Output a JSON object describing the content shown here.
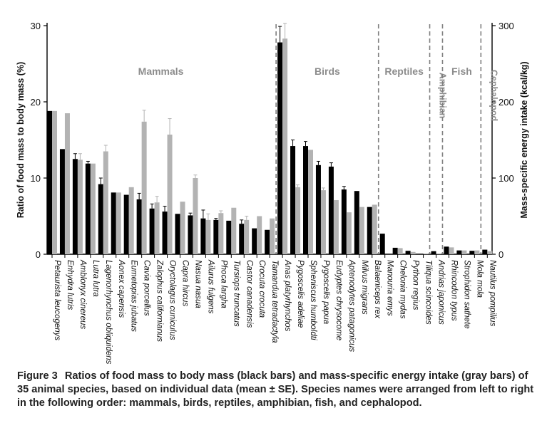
{
  "chart_data": {
    "type": "bar",
    "ylabel_left": "Ratio of food mass to body mass (%)",
    "ylabel_right": "Mass-specific energy intake (kcal/kg)",
    "ylim_left": [
      0,
      30
    ],
    "ylim_right": [
      0,
      300
    ],
    "yticks_left": [
      "0",
      "10",
      "20",
      "30"
    ],
    "yticks_right": [
      "0",
      "100",
      "200",
      "300"
    ],
    "colors": {
      "food": "#000000",
      "energy": "#b3b3b3",
      "divider": "#7f7f7f"
    },
    "categories": [
      "Petaurista leucogenys",
      "Enhydra lutris",
      "Amblonyx cinereus",
      "Lutra lutra",
      "Lagenorhynchus obliquidens",
      "Aonex capensis",
      "Eumetopias jubatus",
      "Cavia porcellus",
      "Zalophus californianus",
      "Oryctolagus cuniculus",
      "Capra hircus",
      "Nasua nasua",
      "Ailurus fulgens",
      "Phoca largha",
      "Tursiops truncatus",
      "Castor canadensis",
      "Crocuta crocuta",
      "Tamandua tetradactyla",
      "Anas platyrhynchos",
      "Pygoscelis adeliae",
      "Spheniscus humboldti",
      "Pygoscelis papua",
      "Eudyptes chrysocome",
      "Aptenodytes patagonicus",
      "Milvus migrans",
      "Balaeniceps rex",
      "Manouria emys",
      "Chelonia mydas",
      "Python regius",
      "Tiliqua scincoides",
      "Andrias japonicus",
      "Rhincodon typus",
      "Strophidon sathete",
      "Mola mola",
      "Nautilus pompilius"
    ],
    "series": [
      {
        "name": "black bars",
        "axis": "left",
        "values": [
          18.8,
          13.8,
          12.5,
          11.9,
          9.2,
          8.1,
          7.8,
          7.2,
          6.0,
          5.6,
          5.3,
          5.1,
          4.7,
          4.5,
          4.4,
          4.0,
          3.4,
          3.2,
          27.8,
          14.2,
          14.2,
          11.7,
          11.5,
          8.5,
          8.3,
          6.2,
          2.7,
          0.85,
          0.45,
          0.05,
          0.4,
          1.0,
          0.5,
          0.45,
          0.6
        ],
        "errors": [
          0,
          0,
          0.7,
          0.3,
          0.8,
          0,
          0,
          0.8,
          0.6,
          0.7,
          0,
          0.3,
          1.1,
          0.2,
          0,
          0.5,
          0,
          0,
          2.1,
          0.8,
          0.6,
          0.5,
          0.5,
          0.4,
          0,
          0,
          0,
          0,
          0,
          0,
          0,
          0,
          0,
          0,
          0
        ]
      },
      {
        "name": "gray bars",
        "axis": "right",
        "values": [
          188,
          185,
          124,
          119,
          135,
          81,
          88,
          174,
          68,
          157,
          69,
          100,
          45,
          54,
          61,
          45,
          50,
          47,
          283,
          88,
          137,
          84,
          71,
          55,
          62,
          65,
          0,
          8,
          3,
          1,
          1,
          9,
          5,
          5,
          4
        ],
        "errors": [
          0,
          0,
          8,
          0,
          8,
          0,
          0,
          15,
          8,
          21,
          0,
          4,
          8,
          3,
          0,
          5,
          0,
          0,
          20,
          3,
          0,
          3,
          0,
          0,
          0,
          0,
          0,
          0,
          0,
          0,
          0,
          0,
          0,
          0,
          0
        ]
      }
    ],
    "groups": [
      {
        "label": "Mammals",
        "start": 0,
        "end": 17,
        "orientation": "horizontal"
      },
      {
        "label": "Birds",
        "start": 18,
        "end": 25,
        "orientation": "horizontal"
      },
      {
        "label": "Reptiles",
        "start": 26,
        "end": 29,
        "orientation": "horizontal"
      },
      {
        "label": "Amphibian",
        "start": 30,
        "end": 30,
        "orientation": "vertical"
      },
      {
        "label": "Fish",
        "start": 31,
        "end": 33,
        "orientation": "horizontal"
      },
      {
        "label": "Cephalopod",
        "start": 34,
        "end": 34,
        "orientation": "vertical"
      }
    ],
    "legend": "none",
    "grid": false
  },
  "caption": {
    "label": "Figure 3",
    "text": "Ratios of food mass to body mass (black bars) and mass-specific energy intake (gray bars) of 35 animal species, based on individual data (mean ± SE). Species names were arranged from left to right in the following order: mammals, birds, reptiles, amphibian, fish, and cephalopod."
  }
}
